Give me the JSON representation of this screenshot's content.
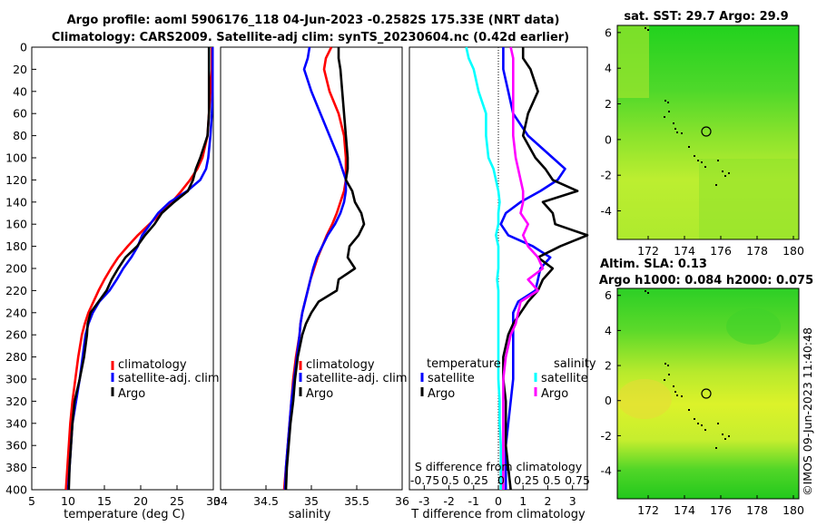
{
  "chart_data": [
    {
      "type": "line",
      "panel": "temperature",
      "title_line1": "Argo profile: aoml 5906176_118 04-Jun-2023 -0.2582S 175.33E (NRT data)",
      "title_line2": "Climatology: CARS2009. Satellite-adj clim: synTS_20230604.nc (0.42d earlier)",
      "xlabel": "temperature (deg C)",
      "xlim": [
        5,
        30
      ],
      "xticks": [
        "5",
        "10",
        "15",
        "20",
        "25",
        "30"
      ],
      "ylim": [
        0,
        400
      ],
      "yticks": [
        "0",
        "20",
        "40",
        "60",
        "80",
        "100",
        "120",
        "140",
        "160",
        "180",
        "200",
        "220",
        "240",
        "260",
        "280",
        "300",
        "320",
        "340",
        "360",
        "380",
        "400"
      ],
      "depth": [
        0,
        10,
        20,
        40,
        60,
        80,
        100,
        110,
        120,
        130,
        140,
        150,
        160,
        170,
        180,
        190,
        200,
        210,
        220,
        230,
        240,
        250,
        260,
        280,
        300,
        320,
        340,
        360,
        380,
        400
      ],
      "legend": [
        "climatology",
        "satellite-adj. clim",
        "Argo"
      ],
      "series": [
        {
          "name": "climatology",
          "color": "#ff0000",
          "values": [
            29.8,
            29.8,
            29.8,
            29.6,
            29.4,
            29.2,
            28.5,
            27.8,
            26.8,
            25.6,
            24.3,
            22.8,
            21.2,
            19.6,
            18.2,
            16.9,
            15.9,
            15.0,
            14.2,
            13.5,
            12.8,
            12.3,
            11.9,
            11.4,
            11.0,
            10.6,
            10.3,
            10.1,
            9.9,
            9.7
          ]
        },
        {
          "name": "satellite-adj. clim",
          "color": "#0000ff",
          "values": [
            29.9,
            29.9,
            29.9,
            29.9,
            29.8,
            29.6,
            29.3,
            29.0,
            28.2,
            26.4,
            24.0,
            22.4,
            21.3,
            20.2,
            19.6,
            18.7,
            17.6,
            16.7,
            15.7,
            14.3,
            13.4,
            12.8,
            12.4,
            12.0,
            11.6,
            11.1,
            10.6,
            10.4,
            10.2,
            10.0
          ]
        },
        {
          "name": "Argo",
          "color": "#000000",
          "values": [
            29.4,
            29.4,
            29.4,
            29.4,
            29.4,
            29.2,
            28.2,
            27.6,
            27.2,
            26.5,
            24.6,
            22.9,
            21.9,
            20.6,
            19.5,
            17.9,
            16.9,
            16.0,
            15.3,
            14.2,
            13.1,
            12.7,
            12.6,
            12.2,
            11.6,
            10.9,
            10.6,
            10.4,
            10.2,
            10.1
          ]
        }
      ]
    },
    {
      "type": "line",
      "panel": "salinity",
      "xlabel": "salinity",
      "xlim": [
        34,
        36
      ],
      "xticks": [
        "34",
        "34.5",
        "35",
        "35.5",
        "36"
      ],
      "ylim": [
        0,
        400
      ],
      "depth": [
        0,
        10,
        20,
        40,
        60,
        80,
        100,
        110,
        120,
        130,
        140,
        150,
        160,
        170,
        180,
        190,
        200,
        210,
        220,
        230,
        240,
        250,
        260,
        280,
        300,
        320,
        340,
        360,
        380,
        400
      ],
      "legend": [
        "climatology",
        "satellite-adj. clim",
        "Argo"
      ],
      "series": [
        {
          "name": "climatology",
          "color": "#ff0000",
          "values": [
            35.22,
            35.16,
            35.14,
            35.2,
            35.3,
            35.36,
            35.38,
            35.38,
            35.38,
            35.36,
            35.32,
            35.28,
            35.23,
            35.17,
            35.12,
            35.07,
            35.03,
            34.99,
            34.96,
            34.93,
            34.9,
            34.88,
            34.87,
            34.83,
            34.8,
            34.78,
            34.76,
            34.74,
            34.72,
            34.7
          ]
        },
        {
          "name": "satellite-adj. clim",
          "color": "#0000ff",
          "values": [
            34.98,
            34.96,
            34.92,
            35.0,
            35.1,
            35.2,
            35.3,
            35.34,
            35.38,
            35.38,
            35.36,
            35.32,
            35.26,
            35.18,
            35.12,
            35.06,
            35.02,
            34.99,
            34.96,
            34.93,
            34.9,
            34.88,
            34.87,
            34.84,
            34.81,
            34.78,
            34.76,
            34.74,
            34.72,
            34.71
          ]
        },
        {
          "name": "Argo",
          "color": "#000000",
          "values": [
            35.3,
            35.3,
            35.32,
            35.34,
            35.36,
            35.38,
            35.4,
            35.4,
            35.38,
            35.45,
            35.48,
            35.55,
            35.58,
            35.52,
            35.42,
            35.4,
            35.48,
            35.3,
            35.28,
            35.08,
            35.0,
            34.94,
            34.9,
            34.85,
            34.82,
            34.8,
            34.77,
            34.75,
            34.73,
            34.72
          ]
        }
      ]
    },
    {
      "type": "line",
      "panel": "differences",
      "xlabel": "T difference from climatology",
      "xlim": [
        -3.6,
        3.6
      ],
      "xticks": [
        "-3",
        "-2",
        "-1",
        "0",
        "1",
        "2",
        "3"
      ],
      "top_xlabel": "S difference from climatology",
      "top_xticks": [
        "-0.75",
        "0.5",
        "0.25",
        "0",
        "0.25",
        "0.5",
        "0.75"
      ],
      "ylim": [
        0,
        400
      ],
      "depth": [
        0,
        10,
        20,
        40,
        60,
        80,
        100,
        110,
        120,
        130,
        140,
        150,
        160,
        170,
        180,
        190,
        200,
        210,
        220,
        230,
        240,
        250,
        260,
        280,
        300,
        320,
        340,
        360,
        380,
        400
      ],
      "legend_headings": [
        "temperature",
        "salinity"
      ],
      "legend": [
        "satellite",
        "Argo",
        "satellite",
        "Argo"
      ],
      "series": [
        {
          "name": "T satellite",
          "color": "#0000ff",
          "values": [
            0.2,
            0.2,
            0.2,
            0.4,
            0.6,
            1.2,
            2.2,
            2.7,
            2.4,
            1.7,
            0.9,
            0.3,
            0.1,
            0.4,
            1.4,
            2.1,
            1.7,
            1.6,
            1.5,
            0.8,
            0.6,
            0.6,
            0.6,
            0.6,
            0.6,
            0.5,
            0.4,
            0.3,
            0.3,
            0.3
          ]
        },
        {
          "name": "T Argo",
          "color": "#000000",
          "values": [
            1.0,
            1.0,
            1.3,
            1.6,
            1.2,
            1.0,
            1.5,
            1.9,
            2.2,
            3.2,
            1.8,
            2.2,
            2.3,
            3.6,
            2.5,
            1.6,
            2.2,
            1.8,
            1.6,
            1.2,
            0.9,
            0.6,
            0.4,
            0.2,
            0.2,
            0.3,
            0.3,
            0.3,
            0.4,
            0.5
          ]
        },
        {
          "name": "S satellite",
          "color": "#00ffff",
          "values": [
            -1.3,
            -1.2,
            -1.0,
            -0.8,
            -0.5,
            -0.5,
            -0.4,
            -0.2,
            -0.1,
            0.0,
            0.05,
            0.0,
            0.0,
            -0.1,
            0.0,
            0.0,
            0.0,
            -0.05,
            0.0,
            0.0,
            0.0,
            0.0,
            0.0,
            0.0,
            0.0,
            0.05,
            0.05,
            0.1,
            0.1,
            0.1
          ]
        },
        {
          "name": "S Argo",
          "color": "#ff00ff",
          "values": [
            0.5,
            0.6,
            0.6,
            0.6,
            0.6,
            0.6,
            0.7,
            0.8,
            0.9,
            1.0,
            1.0,
            0.9,
            1.2,
            1.0,
            1.2,
            1.6,
            1.8,
            1.2,
            1.6,
            0.9,
            0.8,
            0.7,
            0.5,
            0.3,
            0.2,
            0.2,
            0.2,
            0.2,
            0.2,
            0.2
          ]
        }
      ]
    },
    {
      "type": "heatmap",
      "panel": "sst_map",
      "title": "sat. SST: 29.7 Argo: 29.9",
      "xticks": [
        "172",
        "174",
        "176",
        "178",
        "180"
      ],
      "yticks": [
        "6",
        "4",
        "2",
        "0",
        "-2",
        "-4"
      ],
      "xlim": [
        170.3,
        180.3
      ],
      "ylim": [
        -5.6,
        6.4
      ],
      "float_position": {
        "lon": 175.33,
        "lat": 0.26
      }
    },
    {
      "type": "heatmap",
      "panel": "sla_map",
      "title_line1": "Altim. SLA: 0.13",
      "title_line2": "Argo h1000: 0.084 h2000: 0.075",
      "xticks": [
        "172",
        "174",
        "176",
        "178",
        "180"
      ],
      "yticks": [
        "6",
        "4",
        "2",
        "0",
        "-2",
        "-4"
      ],
      "xlim": [
        170.3,
        180.3
      ],
      "ylim": [
        -5.6,
        6.4
      ],
      "float_position": {
        "lon": 175.33,
        "lat": 0.26
      }
    }
  ],
  "credit": "©IMOS 09-Jun-2023 11:40:48",
  "colors": {
    "climatology": "#ff0000",
    "satellite": "#0000ff",
    "argo": "#000000",
    "s_satellite": "#00ffff",
    "s_argo": "#ff00ff"
  }
}
